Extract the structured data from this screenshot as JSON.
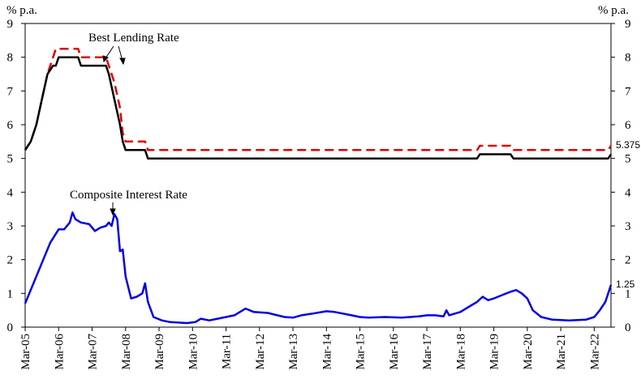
{
  "chart_data": {
    "type": "line",
    "y_unit_left": "% p.a.",
    "y_unit_right": "% p.a.",
    "ylim": [
      0,
      9
    ],
    "y_ticks": [
      "0",
      "1",
      "2",
      "3",
      "4",
      "5",
      "6",
      "7",
      "8",
      "9"
    ],
    "x_range": [
      "2005-03",
      "2022-09"
    ],
    "x_ticks": [
      {
        "date": "2005-03",
        "label": "Mar-05"
      },
      {
        "date": "2006-03",
        "label": "Mar-06"
      },
      {
        "date": "2007-03",
        "label": "Mar-07"
      },
      {
        "date": "2008-03",
        "label": "Mar-08"
      },
      {
        "date": "2009-03",
        "label": "Mar-09"
      },
      {
        "date": "2010-03",
        "label": "Mar-10"
      },
      {
        "date": "2011-03",
        "label": "Mar-11"
      },
      {
        "date": "2012-03",
        "label": "Mar-12"
      },
      {
        "date": "2013-03",
        "label": "Mar-13"
      },
      {
        "date": "2014-03",
        "label": "Mar-14"
      },
      {
        "date": "2015-03",
        "label": "Mar-15"
      },
      {
        "date": "2016-03",
        "label": "Mar-16"
      },
      {
        "date": "2017-03",
        "label": "Mar-17"
      },
      {
        "date": "2018-03",
        "label": "Mar-18"
      },
      {
        "date": "2019-03",
        "label": "Mar-19"
      },
      {
        "date": "2020-03",
        "label": "Mar-20"
      },
      {
        "date": "2021-03",
        "label": "Mar-21"
      },
      {
        "date": "2022-03",
        "label": "Mar-22"
      }
    ],
    "grid": false,
    "annotations": [
      {
        "text": "Best Lending Rate"
      },
      {
        "text": "Composite Interest Rate"
      }
    ],
    "end_labels": {
      "best_lending_upper": "5.375",
      "composite": "1.25"
    },
    "series": [
      {
        "color": "#e00000",
        "dash": true,
        "points": [
          [
            "2005-03",
            5.25
          ],
          [
            "2005-05",
            5.5
          ],
          [
            "2005-07",
            6.0
          ],
          [
            "2005-09",
            6.75
          ],
          [
            "2005-11",
            7.5
          ],
          [
            "2006-01",
            8.0
          ],
          [
            "2006-02",
            8.25
          ],
          [
            "2006-10",
            8.25
          ],
          [
            "2006-11",
            8.0
          ],
          [
            "2007-08",
            8.0
          ],
          [
            "2007-09",
            7.75
          ],
          [
            "2007-11",
            7.25
          ],
          [
            "2008-01",
            6.5
          ],
          [
            "2008-02",
            5.75
          ],
          [
            "2008-03",
            5.5
          ],
          [
            "2008-10",
            5.5
          ],
          [
            "2008-11",
            5.25
          ],
          [
            "2018-09",
            5.25
          ],
          [
            "2018-10",
            5.375
          ],
          [
            "2019-09",
            5.375
          ],
          [
            "2019-10",
            5.25
          ],
          [
            "2022-08",
            5.25
          ],
          [
            "2022-09",
            5.375
          ]
        ]
      },
      {
        "color": "#000000",
        "dash": false,
        "points": [
          [
            "2005-03",
            5.25
          ],
          [
            "2005-05",
            5.5
          ],
          [
            "2005-07",
            6.0
          ],
          [
            "2005-09",
            6.75
          ],
          [
            "2005-11",
            7.5
          ],
          [
            "2006-01",
            7.75
          ],
          [
            "2006-02",
            7.75
          ],
          [
            "2006-03",
            8.0
          ],
          [
            "2006-10",
            8.0
          ],
          [
            "2006-11",
            7.75
          ],
          [
            "2007-08",
            7.75
          ],
          [
            "2007-09",
            7.5
          ],
          [
            "2007-11",
            6.75
          ],
          [
            "2008-01",
            6.0
          ],
          [
            "2008-02",
            5.5
          ],
          [
            "2008-03",
            5.25
          ],
          [
            "2008-10",
            5.25
          ],
          [
            "2008-11",
            5.0
          ],
          [
            "2018-09",
            5.0
          ],
          [
            "2018-10",
            5.125
          ],
          [
            "2019-09",
            5.125
          ],
          [
            "2019-10",
            5.0
          ],
          [
            "2022-08",
            5.0
          ],
          [
            "2022-09",
            5.125
          ]
        ]
      },
      {
        "color": "#0000e6",
        "dash": false,
        "points": [
          [
            "2005-03",
            0.7
          ],
          [
            "2005-06",
            1.3
          ],
          [
            "2005-09",
            1.9
          ],
          [
            "2005-12",
            2.5
          ],
          [
            "2006-03",
            2.9
          ],
          [
            "2006-05",
            2.9
          ],
          [
            "2006-07",
            3.1
          ],
          [
            "2006-08",
            3.4
          ],
          [
            "2006-09",
            3.2
          ],
          [
            "2006-11",
            3.1
          ],
          [
            "2007-02",
            3.05
          ],
          [
            "2007-04",
            2.85
          ],
          [
            "2007-06",
            2.95
          ],
          [
            "2007-08",
            3.0
          ],
          [
            "2007-09",
            3.1
          ],
          [
            "2007-10",
            3.0
          ],
          [
            "2007-11",
            3.35
          ],
          [
            "2007-12",
            3.2
          ],
          [
            "2008-01",
            2.25
          ],
          [
            "2008-02",
            2.3
          ],
          [
            "2008-03",
            1.5
          ],
          [
            "2008-05",
            0.85
          ],
          [
            "2008-07",
            0.9
          ],
          [
            "2008-09",
            1.0
          ],
          [
            "2008-10",
            1.3
          ],
          [
            "2008-11",
            0.75
          ],
          [
            "2009-01",
            0.3
          ],
          [
            "2009-04",
            0.2
          ],
          [
            "2009-07",
            0.15
          ],
          [
            "2010-01",
            0.12
          ],
          [
            "2010-04",
            0.15
          ],
          [
            "2010-06",
            0.25
          ],
          [
            "2010-09",
            0.2
          ],
          [
            "2010-12",
            0.25
          ],
          [
            "2011-03",
            0.3
          ],
          [
            "2011-06",
            0.35
          ],
          [
            "2011-10",
            0.55
          ],
          [
            "2012-01",
            0.45
          ],
          [
            "2012-06",
            0.42
          ],
          [
            "2012-12",
            0.3
          ],
          [
            "2013-03",
            0.28
          ],
          [
            "2013-06",
            0.35
          ],
          [
            "2013-10",
            0.4
          ],
          [
            "2014-03",
            0.47
          ],
          [
            "2014-06",
            0.45
          ],
          [
            "2014-12",
            0.35
          ],
          [
            "2015-03",
            0.3
          ],
          [
            "2015-06",
            0.28
          ],
          [
            "2015-12",
            0.3
          ],
          [
            "2016-06",
            0.28
          ],
          [
            "2016-12",
            0.32
          ],
          [
            "2017-03",
            0.35
          ],
          [
            "2017-06",
            0.35
          ],
          [
            "2017-09",
            0.32
          ],
          [
            "2017-10",
            0.5
          ],
          [
            "2017-11",
            0.35
          ],
          [
            "2018-01",
            0.4
          ],
          [
            "2018-03",
            0.45
          ],
          [
            "2018-06",
            0.6
          ],
          [
            "2018-09",
            0.75
          ],
          [
            "2018-11",
            0.9
          ],
          [
            "2019-01",
            0.8
          ],
          [
            "2019-03",
            0.85
          ],
          [
            "2019-06",
            0.95
          ],
          [
            "2019-09",
            1.05
          ],
          [
            "2019-11",
            1.1
          ],
          [
            "2020-01",
            1.0
          ],
          [
            "2020-03",
            0.85
          ],
          [
            "2020-05",
            0.5
          ],
          [
            "2020-08",
            0.3
          ],
          [
            "2020-12",
            0.22
          ],
          [
            "2021-06",
            0.2
          ],
          [
            "2021-12",
            0.22
          ],
          [
            "2022-03",
            0.3
          ],
          [
            "2022-05",
            0.5
          ],
          [
            "2022-07",
            0.75
          ],
          [
            "2022-09",
            1.25
          ]
        ]
      }
    ]
  }
}
